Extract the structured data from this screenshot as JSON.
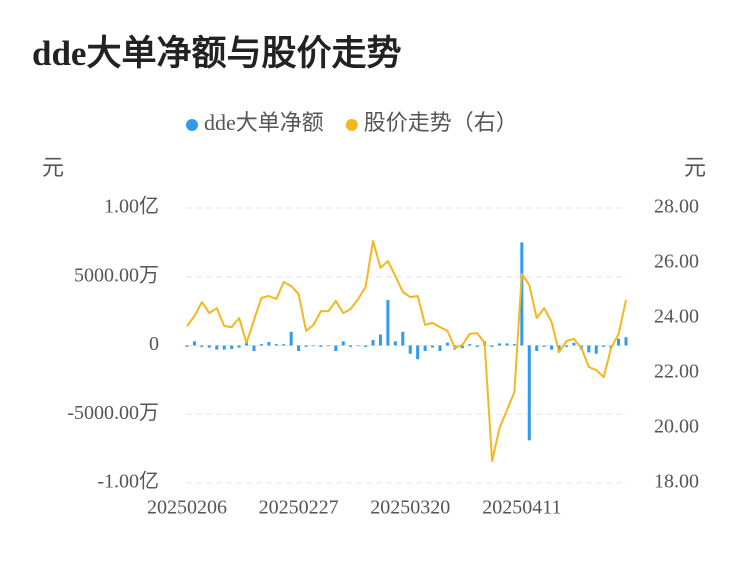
{
  "chart_data": {
    "type": "bar_line",
    "title": "dde大单净额与股价走势",
    "y_label": "元",
    "y2_label": "元",
    "categories": [
      "20250206",
      null,
      null,
      null,
      null,
      null,
      null,
      null,
      null,
      null,
      null,
      null,
      null,
      null,
      null,
      "20250227",
      null,
      null,
      null,
      null,
      null,
      null,
      null,
      null,
      null,
      null,
      null,
      null,
      null,
      null,
      "20250320",
      null,
      null,
      null,
      null,
      null,
      null,
      null,
      null,
      null,
      null,
      null,
      null,
      null,
      null,
      "20250411",
      null,
      null,
      null,
      null,
      null,
      null,
      null,
      null,
      null,
      null,
      null,
      null,
      null,
      null
    ],
    "series": [
      {
        "name": "dde大单净额",
        "type": "bar",
        "color": "#2f9bf0",
        "values": [
          -100,
          300,
          -100,
          -150,
          -300,
          -300,
          -250,
          -150,
          300,
          -400,
          100,
          250,
          100,
          100,
          1000,
          -400,
          -100,
          -50,
          -100,
          -50,
          -400,
          300,
          -100,
          -50,
          -100,
          400,
          800,
          3300,
          300,
          1000,
          -600,
          -1000,
          -400,
          -150,
          -400,
          200,
          -300,
          -200,
          100,
          -100,
          300,
          -100,
          150,
          150,
          100,
          7500,
          -6900,
          -400,
          -100,
          -300,
          -500,
          -100,
          200,
          -300,
          -500,
          -600,
          -100,
          -200,
          500,
          600
        ]
      },
      {
        "name": "股价走势（右）",
        "type": "line",
        "axis": "y2",
        "color": "#f5b71f",
        "values": [
          23.71,
          24.07,
          24.58,
          24.18,
          24.36,
          23.71,
          23.67,
          24.0,
          23.09,
          23.93,
          24.73,
          24.8,
          24.69,
          25.31,
          25.16,
          24.87,
          23.53,
          23.75,
          24.25,
          24.25,
          24.62,
          24.18,
          24.33,
          24.69,
          25.13,
          26.8,
          25.82,
          26.07,
          25.53,
          24.95,
          24.76,
          24.8,
          23.75,
          23.82,
          23.67,
          23.53,
          22.91,
          23.02,
          23.42,
          23.45,
          23.09,
          18.8,
          20.0,
          20.65,
          21.31,
          25.6,
          25.2,
          24.0,
          24.36,
          23.85,
          22.76,
          23.16,
          23.24,
          22.91,
          22.22,
          22.11,
          21.85,
          22.91,
          23.42,
          24.65
        ]
      }
    ],
    "ylim": [
      -10000,
      10000
    ],
    "yticks": [
      {
        "value": -10000,
        "label": "-1.00亿"
      },
      {
        "value": -5000,
        "label": "-5000.00万"
      },
      0,
      {
        "value": 5000,
        "label": "5000.00万"
      },
      {
        "value": 10000,
        "label": "1.00亿"
      }
    ],
    "y2lim": [
      18,
      28
    ],
    "y2ticks": [
      {
        "value": 18,
        "label": "18.00"
      },
      {
        "value": 20,
        "label": "20.00"
      },
      {
        "value": 22,
        "label": "22.00"
      },
      {
        "value": 24,
        "label": "24.00"
      },
      {
        "value": 26,
        "label": "26.00"
      },
      {
        "value": 28,
        "label": "28.00"
      }
    ],
    "grid": true,
    "legend": "top"
  }
}
